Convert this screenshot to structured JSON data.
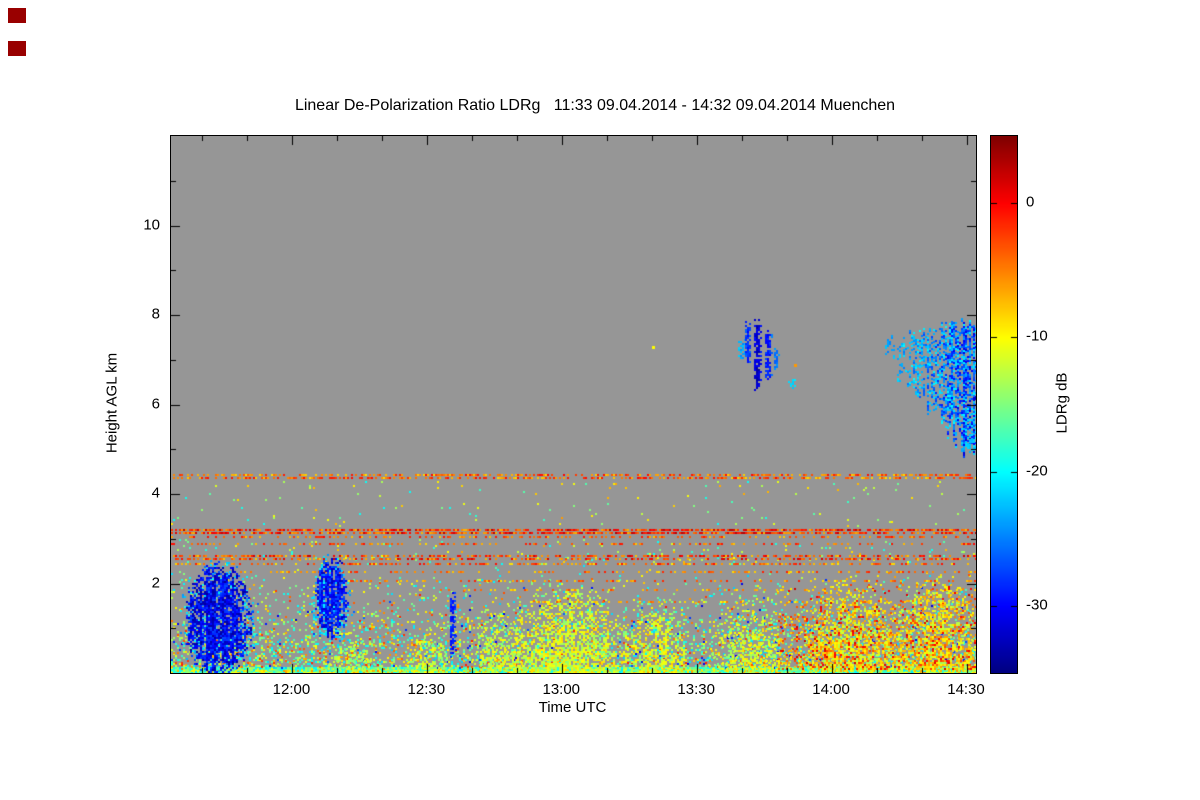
{
  "chart_data": {
    "type": "heatmap",
    "title": "Linear De-Polarization Ratio LDRg   11:33 09.04.2014 - 14:32 09.04.2014 Muenchen",
    "xlabel": "Time UTC",
    "ylabel": "Height AGL km",
    "colorbar_label": "LDRg dB",
    "x_start_min": 0,
    "x_end_min": 179,
    "x_ticks": [
      {
        "label": "12:00",
        "min": 27
      },
      {
        "label": "12:30",
        "min": 57
      },
      {
        "label": "13:00",
        "min": 87
      },
      {
        "label": "13:30",
        "min": 117
      },
      {
        "label": "14:00",
        "min": 147
      },
      {
        "label": "14:30",
        "min": 177
      }
    ],
    "x_minor_first_min": 7,
    "x_minor_step_min": 10,
    "y_range_km": [
      0,
      12
    ],
    "y_ticks": [
      2,
      4,
      6,
      8,
      10
    ],
    "y_minor_step_km": 1,
    "colorbar_range_db": [
      -35,
      5
    ],
    "colorbar_ticks": [
      0,
      -10,
      -20,
      -30
    ],
    "no_data_color": "#969696",
    "frame_color": "#000000",
    "colormap": "jet-dark-red-to-dark-blue",
    "features": [
      {
        "kind": "speckle",
        "t": [
          0,
          179
        ],
        "h": [
          0,
          0.14
        ],
        "density": 1.0,
        "v": [
          -21,
          -13
        ]
      },
      {
        "kind": "speckle",
        "t": [
          0,
          179
        ],
        "h": [
          0,
          0.12
        ],
        "density": 0.3,
        "v": [
          -12,
          -5
        ]
      },
      {
        "kind": "speckle",
        "t": [
          0,
          179
        ],
        "h": [
          0.12,
          2.45
        ],
        "density": 0.3,
        "v": [
          -22,
          -9
        ],
        "hpow": 1.3
      },
      {
        "kind": "speckle",
        "t": [
          0,
          179
        ],
        "h": [
          0.12,
          2.3
        ],
        "density": 0.1,
        "v": [
          -9,
          -1
        ],
        "hpow": 1.6
      },
      {
        "kind": "speckle",
        "t": [
          0,
          179
        ],
        "h": [
          0.1,
          2.2
        ],
        "density": 0.02,
        "v": [
          -32,
          -25
        ],
        "hpow": 1
      },
      {
        "kind": "speckle",
        "t": [
          0,
          179
        ],
        "h": [
          2.45,
          3.05
        ],
        "density": 0.05,
        "v": [
          -20,
          -6
        ],
        "hpow": 0.5
      },
      {
        "kind": "speckle",
        "t": [
          0,
          179
        ],
        "h": [
          3.3,
          4.3
        ],
        "density": 0.012,
        "v": [
          -20,
          -6
        ]
      },
      {
        "kind": "plume",
        "tc": 40,
        "tw": 6,
        "htop": 1.0,
        "density": 0.45,
        "v": [
          -17,
          -10
        ]
      },
      {
        "kind": "plume",
        "tc": 57,
        "tw": 6,
        "htop": 1.2,
        "density": 0.5,
        "v": [
          -16,
          -9
        ]
      },
      {
        "kind": "plume",
        "tc": 73,
        "tw": 7,
        "htop": 1.6,
        "density": 0.55,
        "v": [
          -15,
          -9
        ]
      },
      {
        "kind": "plume",
        "tc": 88,
        "tw": 15,
        "htop": 2.1,
        "density": 0.8,
        "v": [
          -15,
          -8
        ]
      },
      {
        "kind": "plume",
        "tc": 108,
        "tw": 8,
        "htop": 1.7,
        "density": 0.6,
        "v": [
          -15,
          -8
        ]
      },
      {
        "kind": "plume",
        "tc": 128,
        "tw": 9,
        "htop": 1.8,
        "density": 0.55,
        "v": [
          -15,
          -8
        ]
      },
      {
        "kind": "plume",
        "tc": 151,
        "tw": 13,
        "htop": 2.25,
        "density": 0.7,
        "v": [
          -14,
          -6
        ]
      },
      {
        "kind": "plume",
        "tc": 170,
        "tw": 11,
        "htop": 2.35,
        "density": 0.7,
        "v": [
          -14,
          -6
        ]
      },
      {
        "kind": "speckle",
        "t": [
          135,
          179
        ],
        "h": [
          0.1,
          2.3
        ],
        "density": 0.28,
        "v": [
          -10,
          2
        ],
        "hpow": 0.9
      },
      {
        "kind": "hline",
        "h": 4.42,
        "t": [
          0,
          179
        ],
        "density": 0.5,
        "v": [
          -9,
          0
        ],
        "hkm": 0.07
      },
      {
        "kind": "hline",
        "h": 3.17,
        "t": [
          0,
          179
        ],
        "density": 0.8,
        "v": [
          -7,
          3
        ],
        "hkm": 0.09
      },
      {
        "kind": "hline",
        "h": 3.03,
        "t": [
          0,
          179
        ],
        "density": 0.3,
        "v": [
          -8,
          0
        ],
        "hkm": 0.06
      },
      {
        "kind": "hline",
        "h": 2.88,
        "t": [
          0,
          179
        ],
        "density": 0.3,
        "v": [
          -8,
          0
        ],
        "hkm": 0.06
      },
      {
        "kind": "hline",
        "h": 2.6,
        "t": [
          0,
          179
        ],
        "density": 0.5,
        "v": [
          -8,
          2
        ],
        "hkm": 0.07
      },
      {
        "kind": "hline",
        "h": 2.43,
        "t": [
          0,
          179
        ],
        "density": 0.42,
        "v": [
          -9,
          0
        ],
        "hkm": 0.06
      },
      {
        "kind": "hline",
        "h": 2.24,
        "t": [
          10,
          179
        ],
        "density": 0.32,
        "v": [
          -9,
          -1
        ],
        "hkm": 0.06
      },
      {
        "kind": "hline",
        "h": 2.04,
        "t": [
          30,
          179
        ],
        "density": 0.3,
        "v": [
          -10,
          -1
        ],
        "hkm": 0.06
      },
      {
        "kind": "hline",
        "h": 1.84,
        "t": [
          55,
          179
        ],
        "density": 0.26,
        "v": [
          -10,
          -2
        ],
        "hkm": 0.06
      },
      {
        "kind": "hline",
        "h": 1.58,
        "t": [
          70,
          179
        ],
        "density": 0.22,
        "v": [
          -11,
          -3
        ],
        "hkm": 0.06
      },
      {
        "kind": "blob",
        "tc": 10.5,
        "tw": 9,
        "hc": 1.15,
        "hh": 1.5,
        "density": 0.3,
        "v": [
          -26,
          -19
        ]
      },
      {
        "kind": "blob",
        "tc": 10.5,
        "tw": 8,
        "hc": 1.2,
        "hh": 1.35,
        "density": 0.95,
        "v": [
          -34,
          -27
        ]
      },
      {
        "kind": "blob",
        "tc": 35.5,
        "tw": 4.8,
        "hc": 1.6,
        "hh": 1.1,
        "density": 0.3,
        "v": [
          -25,
          -19
        ]
      },
      {
        "kind": "blob",
        "tc": 35.5,
        "tw": 4,
        "hc": 1.7,
        "hh": 0.95,
        "density": 0.9,
        "v": [
          -33,
          -26
        ]
      },
      {
        "kind": "vstreak",
        "tc": 62.5,
        "w": 0.8,
        "h": [
          0.25,
          2.0
        ],
        "density": 0.8,
        "v": [
          -31,
          -24
        ]
      },
      {
        "kind": "vstreak",
        "tc": 126.8,
        "w": 1.1,
        "h": [
          6.95,
          7.55
        ],
        "density": 0.55,
        "v": [
          -25,
          -19
        ]
      },
      {
        "kind": "vstreak",
        "tc": 128.2,
        "w": 0.9,
        "h": [
          6.85,
          7.9
        ],
        "density": 0.85,
        "v": [
          -30,
          -23
        ]
      },
      {
        "kind": "vstreak",
        "tc": 130.3,
        "w": 1.0,
        "h": [
          6.3,
          7.95
        ],
        "density": 0.95,
        "v": [
          -34,
          -26
        ]
      },
      {
        "kind": "vstreak",
        "tc": 132.6,
        "w": 0.9,
        "h": [
          6.5,
          7.8
        ],
        "density": 0.85,
        "v": [
          -31,
          -24
        ]
      },
      {
        "kind": "vstreak",
        "tc": 134.4,
        "w": 0.7,
        "h": [
          6.7,
          7.4
        ],
        "density": 0.6,
        "v": [
          -27,
          -21
        ]
      },
      {
        "kind": "vstreak",
        "tc": 137.8,
        "w": 1.0,
        "h": [
          6.35,
          6.62
        ],
        "density": 0.6,
        "v": [
          -23,
          -19
        ]
      },
      {
        "kind": "vstreak",
        "tc": 159.5,
        "w": 1.2,
        "h": [
          7.1,
          7.6
        ],
        "density": 0.5,
        "v": [
          -26,
          -20
        ]
      },
      {
        "kind": "fallstreaks",
        "t": [
          160.5,
          179
        ],
        "htop": [
          7.45,
          7.85
        ],
        "hbase": [
          6.85,
          4.75
        ],
        "density": 0.9,
        "v": [
          -33,
          -20
        ]
      },
      {
        "kind": "vstreak",
        "tc": 177.5,
        "w": 1.5,
        "h": [
          4.75,
          5.9
        ],
        "density": 0.4,
        "v": [
          -23,
          -19
        ]
      },
      {
        "kind": "dot",
        "t": 107,
        "h": 7.3,
        "v": -10
      },
      {
        "kind": "dot",
        "t": 138.5,
        "h": 6.9,
        "v": -6
      }
    ]
  },
  "decorations": {
    "corner_marker_color": "#990000"
  }
}
